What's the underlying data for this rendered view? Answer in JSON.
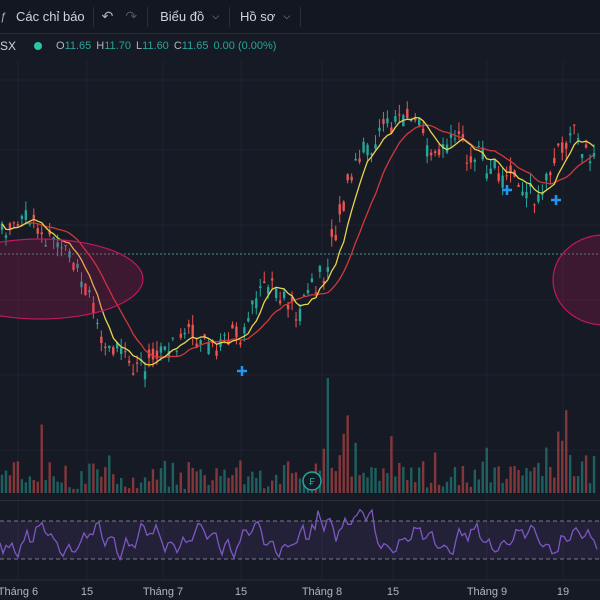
{
  "toolbar": {
    "fx_icon": "fx-icon",
    "indicators_label": "Các chỉ báo",
    "chart_label": "Biểu đồ",
    "profile_label": "Hồ sơ"
  },
  "legend": {
    "symbol": "SX",
    "open_label": "O",
    "open": "11.65",
    "high_label": "H",
    "high": "11.70",
    "low_label": "L",
    "low": "11.60",
    "close_label": "C",
    "close": "11.65",
    "change": "0.00 (0.00%)"
  },
  "xaxis": {
    "labels": [
      "Tháng 6",
      "15",
      "Tháng 7",
      "15",
      "Tháng 8",
      "15",
      "Tháng 9",
      "19"
    ]
  },
  "colors": {
    "up": "#26a69a",
    "down": "#ef5350",
    "ma_fast": "#e8d44d",
    "ma_slow": "#d2373c",
    "rsi": "#7e57c2",
    "highlight": "#c2185b",
    "background": "#161a25"
  },
  "chart_data": {
    "type": "candlestick",
    "x": [
      "Tháng 6",
      "15",
      "Tháng 7",
      "15",
      "Tháng 8",
      "15",
      "Tháng 9",
      "19"
    ],
    "ohlc_last": {
      "open": 11.65,
      "high": 11.7,
      "low": 11.6,
      "close": 11.65
    },
    "change": "0.00 (0.00%)",
    "price_trend_relative": [
      0.62,
      0.64,
      0.58,
      0.45,
      0.28,
      0.2,
      0.27,
      0.3,
      0.26,
      0.34,
      0.45,
      0.38,
      0.5,
      0.78,
      0.9,
      0.97,
      0.86,
      0.88,
      0.8,
      0.78,
      0.7,
      0.9,
      0.84
    ],
    "grid": true,
    "overlays": [
      "moving average (yellow)",
      "moving average (red)"
    ],
    "panes": [
      "price",
      "volume",
      "RSI"
    ]
  }
}
